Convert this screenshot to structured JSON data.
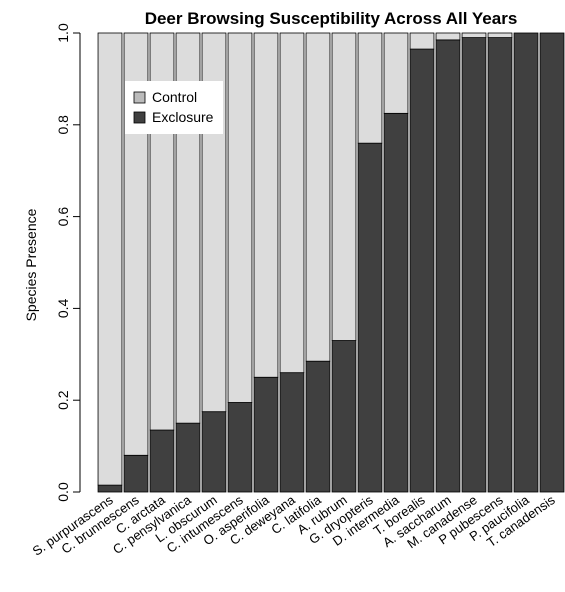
{
  "chart_data": {
    "type": "bar",
    "stacked": true,
    "title": "Deer Browsing Susceptibility Across All Years",
    "xlabel": "",
    "ylabel": "Species Presence",
    "ylim": [
      0,
      1
    ],
    "yticks": [
      "0.0",
      "0.2",
      "0.4",
      "0.6",
      "0.8",
      "1.0"
    ],
    "categories": [
      "S. purpurascens",
      "C. brunnescens",
      "C. arctata",
      "C. pensylvanica",
      "L. obscurum",
      "C. intumescens",
      "O. asperifolia",
      "C. deweyana",
      "C. latifolia",
      "A. rubrum",
      "G. dryopteris",
      "D. intermedia",
      "T. borealis",
      "A. saccharum",
      "M. canadense",
      "P pubescens",
      "P. paucifolia",
      "T. canadensis"
    ],
    "series": [
      {
        "name": "Exclosure",
        "color": "#404040",
        "values": [
          0.015,
          0.08,
          0.135,
          0.15,
          0.175,
          0.195,
          0.25,
          0.26,
          0.285,
          0.33,
          0.76,
          0.825,
          0.965,
          0.985,
          0.99,
          0.99,
          1.0,
          1.0
        ]
      },
      {
        "name": "Control",
        "color": "#dcdcdc",
        "values": [
          0.985,
          0.92,
          0.865,
          0.85,
          0.825,
          0.805,
          0.75,
          0.74,
          0.715,
          0.67,
          0.24,
          0.175,
          0.035,
          0.015,
          0.01,
          0.01,
          0.0,
          0.0
        ]
      }
    ],
    "legend": {
      "position": "top-left",
      "entries": [
        {
          "label": "Control",
          "color": "#bbbbbb"
        },
        {
          "label": "Exclosure",
          "color": "#404040"
        }
      ]
    },
    "grid": false
  }
}
